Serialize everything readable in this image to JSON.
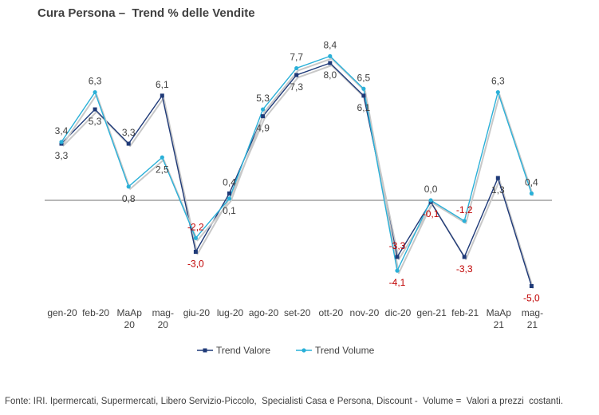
{
  "chart_data": {
    "type": "line",
    "title": "Cura Persona –  Trend % delle Vendite",
    "categories": [
      [
        "gen-20"
      ],
      [
        "feb-20"
      ],
      [
        "MaAp",
        "20"
      ],
      [
        "mag-",
        "20"
      ],
      [
        "giu-20"
      ],
      [
        "lug-20"
      ],
      [
        "ago-20"
      ],
      [
        "set-20"
      ],
      [
        "ott-20"
      ],
      [
        "nov-20"
      ],
      [
        "dic-20"
      ],
      [
        "gen-21"
      ],
      [
        "feb-21"
      ],
      [
        "MaAp",
        "21"
      ],
      [
        "mag-",
        "21"
      ]
    ],
    "series": [
      {
        "name": "Trend Valore",
        "color": "#1f3a78",
        "marker": "square",
        "values": [
          3.3,
          5.3,
          3.3,
          6.1,
          -3.0,
          0.4,
          4.9,
          7.3,
          8.0,
          6.1,
          -3.3,
          -0.1,
          -3.3,
          1.3,
          -5.0
        ],
        "labels": [
          "3,3",
          "5,3",
          "3,3",
          "6,1",
          "-3,0",
          "0,4",
          "4,9",
          "7,3",
          "8,0",
          "6,1",
          "-3,3",
          "-0,1",
          "-3,3",
          "1,3",
          "-5,0"
        ]
      },
      {
        "name": "Trend Volume",
        "color": "#2ab0d8",
        "marker": "circle",
        "values": [
          3.4,
          6.3,
          0.8,
          2.5,
          -2.2,
          0.1,
          5.3,
          7.7,
          8.4,
          6.5,
          -4.1,
          0.0,
          -1.2,
          6.3,
          0.4
        ],
        "labels": [
          "3,4",
          "6,3",
          "0,8",
          "2,5",
          "-2,2",
          "0,1",
          "5,3",
          "7,7",
          "8,4",
          "6,5",
          "-4,1",
          "0,0",
          "-1,2",
          "6,3",
          "0,4"
        ]
      }
    ],
    "negative_label_color": "#c00000",
    "legend_position": "bottom",
    "grid": false
  },
  "source_note": "Fonte: IRI. Ipermercati, Supermercati, Libero Servizio-Piccolo,  Specialisti Casa e Persona, Discount -  Volume =  Valori a prezzi  costanti."
}
